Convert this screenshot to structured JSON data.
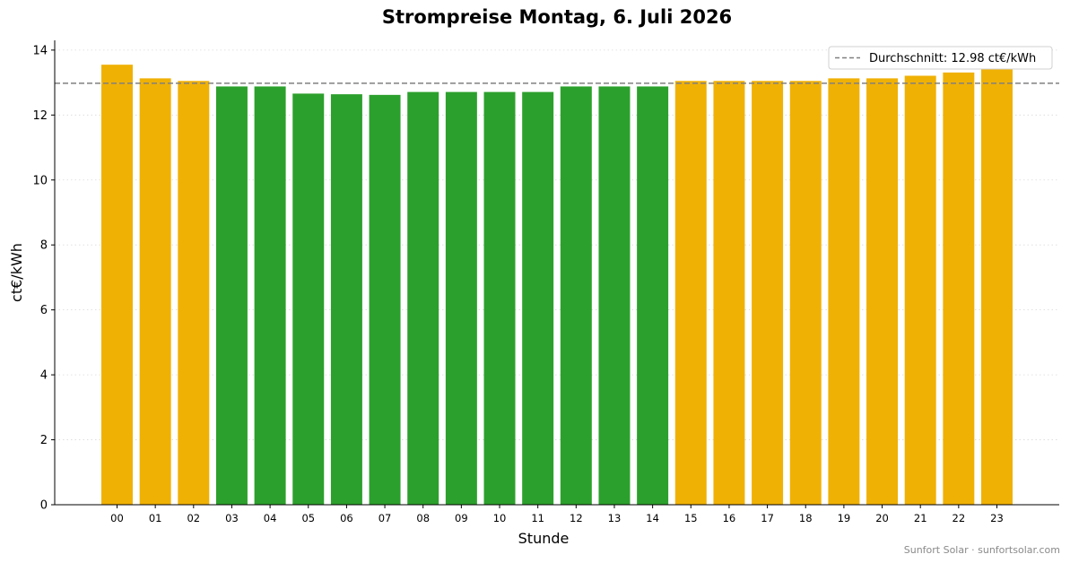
{
  "chart_data": {
    "type": "bar",
    "title": "Strompreise Montag, 6. Juli 2026",
    "xlabel": "Stunde",
    "ylabel": "ct€/kWh",
    "ylim": [
      0,
      14.3
    ],
    "yticks": [
      "0",
      "2",
      "4",
      "6",
      "8",
      "10",
      "12",
      "14"
    ],
    "grid": "horizontal-dotted",
    "legend_position": "top-right",
    "categories": [
      "00",
      "01",
      "02",
      "03",
      "04",
      "05",
      "06",
      "07",
      "08",
      "09",
      "10",
      "11",
      "12",
      "13",
      "14",
      "15",
      "16",
      "17",
      "18",
      "19",
      "20",
      "21",
      "22",
      "23"
    ],
    "values": [
      13.55,
      13.13,
      13.05,
      12.88,
      12.88,
      12.66,
      12.64,
      12.62,
      12.71,
      12.71,
      12.71,
      12.71,
      12.88,
      12.88,
      12.88,
      13.05,
      13.05,
      13.05,
      13.05,
      13.13,
      13.13,
      13.21,
      13.31,
      13.43
    ],
    "bar_colors": [
      "#f0b105",
      "#f0b105",
      "#f0b105",
      "#2ca02c",
      "#2ca02c",
      "#2ca02c",
      "#2ca02c",
      "#2ca02c",
      "#2ca02c",
      "#2ca02c",
      "#2ca02c",
      "#2ca02c",
      "#2ca02c",
      "#2ca02c",
      "#2ca02c",
      "#f0b105",
      "#f0b105",
      "#f0b105",
      "#f0b105",
      "#f0b105",
      "#f0b105",
      "#f0b105",
      "#f0b105",
      "#f0b105"
    ],
    "average": {
      "value": 12.98,
      "label": "Durchschnitt: 12.98 ct€/kWh",
      "color": "#808080"
    }
  },
  "watermark": "Sunfort Solar · sunfortsolar.com"
}
